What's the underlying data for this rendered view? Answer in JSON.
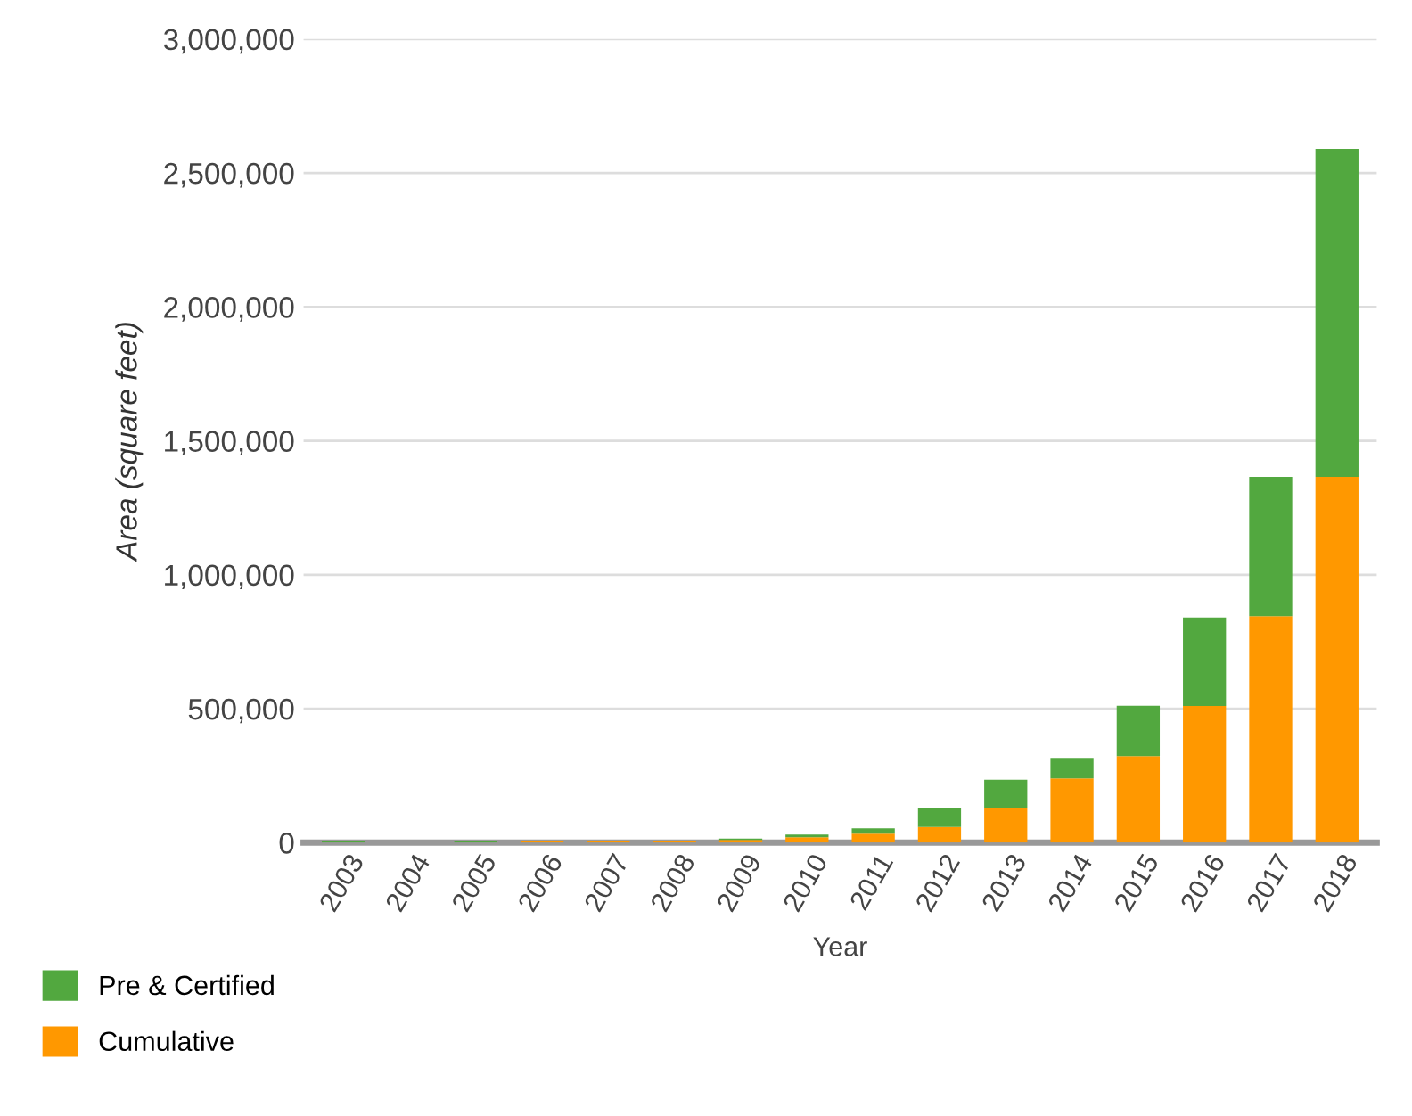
{
  "chart_data": {
    "type": "bar",
    "stacked": true,
    "xlabel": "Year",
    "ylabel": "Area (square feet)",
    "categories": [
      "2003",
      "2004",
      "2005",
      "2006",
      "2007",
      "2008",
      "2009",
      "2010",
      "2011",
      "2012",
      "2013",
      "2014",
      "2015",
      "2016",
      "2017",
      "2018"
    ],
    "series": [
      {
        "name": "Cumulative",
        "color": "#ff9800",
        "values": [
          0,
          0,
          0,
          5000,
          5000,
          5000,
          10000,
          20000,
          33000,
          58000,
          131000,
          240000,
          323000,
          510000,
          845000,
          1365000
        ]
      },
      {
        "name": "Pre & Certified",
        "color": "#52a83f",
        "values": [
          5000,
          0,
          5000,
          0,
          0,
          0,
          5000,
          10000,
          20000,
          71000,
          104000,
          76000,
          188000,
          330000,
          520000,
          1225000
        ]
      }
    ],
    "ylim": [
      0,
      3000000
    ],
    "yticks": [
      {
        "value": 0,
        "label": "0"
      },
      {
        "value": 500000,
        "label": "500,000"
      },
      {
        "value": 1000000,
        "label": "1,000,000"
      },
      {
        "value": 1500000,
        "label": "1,500,000"
      },
      {
        "value": 2000000,
        "label": "2,000,000"
      },
      {
        "value": 2500000,
        "label": "2,500,000"
      },
      {
        "value": 3000000,
        "label": "3,000,000"
      }
    ],
    "grid": "y",
    "legend": "bottom left"
  }
}
